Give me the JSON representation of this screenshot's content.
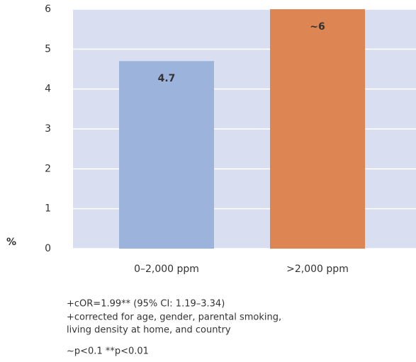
{
  "chart_data": {
    "type": "bar",
    "ylabel": "%",
    "categories": [
      "0–2,000 ppm",
      ">2,000 ppm"
    ],
    "values": [
      4.7,
      6
    ],
    "value_labels": [
      "4.7",
      "~6"
    ],
    "colors": [
      "#9cb3dc",
      "#dd8653"
    ],
    "ylim": [
      0,
      6
    ],
    "yticks": [
      0,
      1,
      2,
      3,
      4,
      5,
      6
    ],
    "grid": true,
    "notes": [
      "+cOR=1.99** (95% CI: 1.19–3.34)",
      "+corrected for age, gender, parental smoking,",
      "living density at home, and country",
      "~p<0.1 **p<0.01"
    ]
  }
}
